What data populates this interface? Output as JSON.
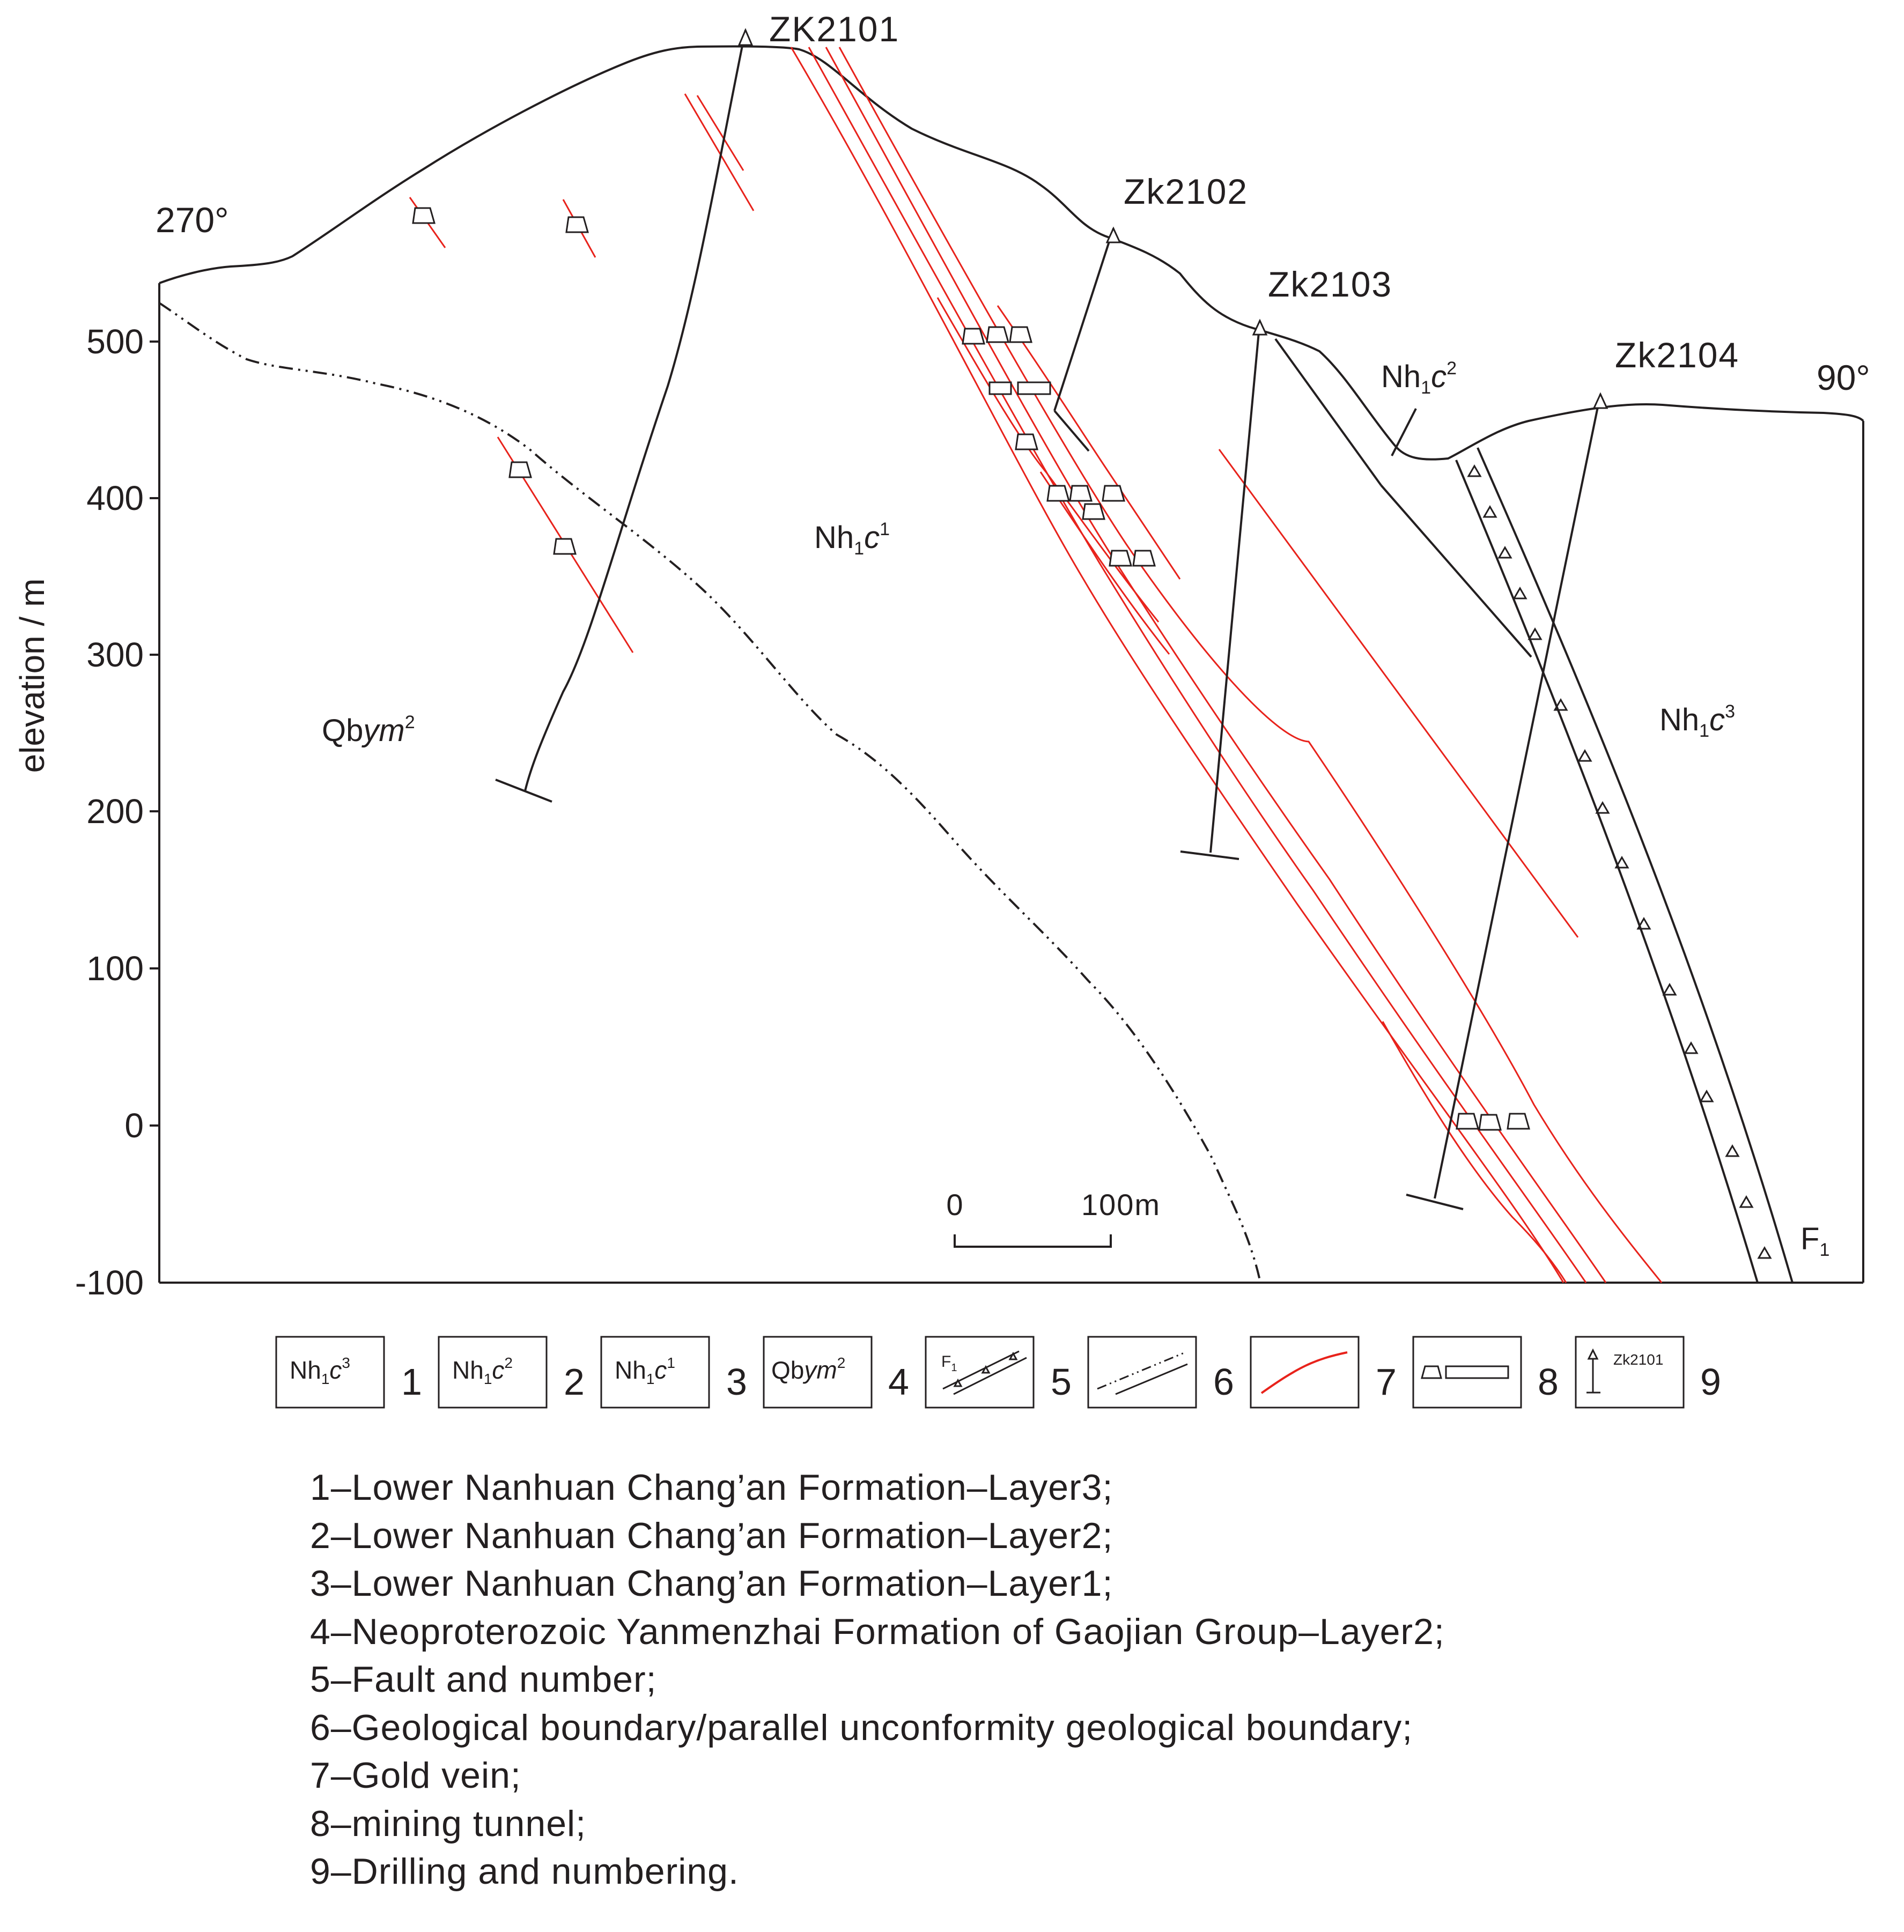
{
  "diagram": {
    "type": "geological cross-section",
    "y_axis": {
      "label": "elevation / m",
      "ticks": [
        "500",
        "400",
        "300",
        "200",
        "100",
        "0",
        "-100"
      ]
    },
    "orientation": {
      "west": "270°",
      "east": "90°"
    },
    "drill_holes": [
      "ZK2101",
      "Zk2102",
      "Zk2103",
      "Zk2104"
    ],
    "units": {
      "Nh1c1": {
        "base": "Nh",
        "sub": "1",
        "italic": "c",
        "sup": "1"
      },
      "Nh1c2": {
        "base": "Nh",
        "sub": "1",
        "italic": "c",
        "sup": "2"
      },
      "Nh1c3": {
        "base": "Nh",
        "sub": "1",
        "italic": "c",
        "sup": "3"
      },
      "Qbym2": {
        "base": "Qb",
        "italic": "ym",
        "sup": "2"
      }
    },
    "fault": {
      "base": "F",
      "sub": "1"
    },
    "scale_bar": {
      "start": "0",
      "end": "100m"
    },
    "colors": {
      "line": "#231f20",
      "gold_vein": "#e8221b"
    }
  },
  "legend": {
    "items": [
      {
        "number": "1",
        "kind": "unit",
        "base": "Nh",
        "sub": "1",
        "italic": "c",
        "sup": "3"
      },
      {
        "number": "2",
        "kind": "unit",
        "base": "Nh",
        "sub": "1",
        "italic": "c",
        "sup": "2"
      },
      {
        "number": "3",
        "kind": "unit",
        "base": "Nh",
        "sub": "1",
        "italic": "c",
        "sup": "1"
      },
      {
        "number": "4",
        "kind": "unit",
        "base": "Qb",
        "italic": "ym",
        "sup": "2"
      },
      {
        "number": "5",
        "kind": "fault-symbol",
        "label": "F",
        "sub": "1"
      },
      {
        "number": "6",
        "kind": "boundary-symbol"
      },
      {
        "number": "7",
        "kind": "gold-vein-symbol"
      },
      {
        "number": "8",
        "kind": "tunnel-symbol"
      },
      {
        "number": "9",
        "kind": "drill-symbol",
        "label": "Zk2101"
      }
    ],
    "notes": [
      "1–Lower Nanhuan Chang’an Formation–Layer3;",
      "2–Lower Nanhuan Chang’an Formation–Layer2;",
      "3–Lower Nanhuan Chang’an Formation–Layer1;",
      "4–Neoproterozoic Yanmenzhai Formation of Gaojian Group–Layer2;",
      "5–Fault and number;",
      "6–Geological boundary/parallel unconformity geological boundary;",
      "7–Gold vein;",
      "8–mining tunnel;",
      "9–Drilling and numbering."
    ]
  }
}
